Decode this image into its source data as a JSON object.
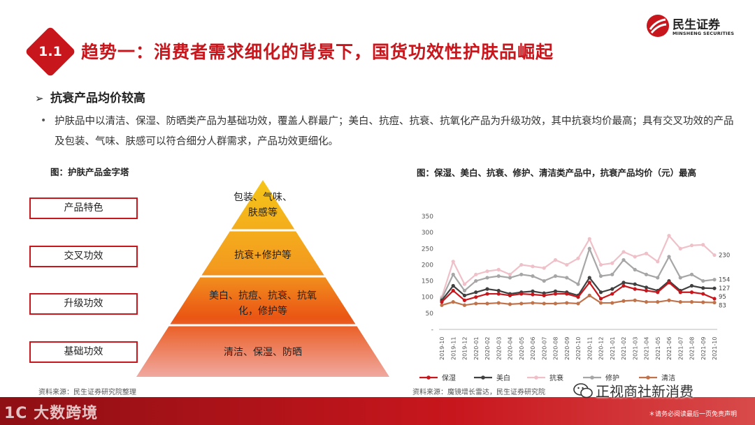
{
  "header": {
    "section_number": "1.1",
    "title": "趋势一：消费者需求细化的背景下，国货功效性护肤品崛起",
    "logo_cn": "民生证券",
    "logo_en": "MINSHENG SECURITIES",
    "brand_color": "#c8161d"
  },
  "section": {
    "heading": "抗衰产品均价较高",
    "bullet": "护肤品中以清洁、保湿、防晒类产品为基础功效，覆盖人群最广；美白、抗痘、抗衰、抗氧化产品为升级功效，其中抗衰均价最高；具有交叉功效的产品及包装、气味、肤感可以符合细分人群需求，产品功效更细化。"
  },
  "left_figure": {
    "title": "图：护肤产品金字塔",
    "labels": [
      "产品特色",
      "交叉功效",
      "升级功效",
      "基础功效"
    ],
    "pyramid": {
      "tier1": "包装、气味、肤感等",
      "tier2": "抗衰+修护等",
      "tier3": "美白、抗痘、抗衰、抗氧化，修护等",
      "tier4": "清洁、保湿、防晒"
    },
    "source": "资料来源：民生证券研究院整理"
  },
  "right_figure": {
    "title": "图：保湿、美白、抗衰、修护、清洁类产品中，抗衰产品均价（元）最高",
    "source": "资料来源：魔镜增长雷达，民生证券研究院"
  },
  "chart_data": {
    "type": "line",
    "x": [
      "2019-10",
      "2019-11",
      "2019-12",
      "2020-01",
      "2020-02",
      "2020-03",
      "2020-04",
      "2020-05",
      "2020-06",
      "2020-07",
      "2020-08",
      "2020-09",
      "2020-10",
      "2020-11",
      "2020-12",
      "2021-01",
      "2021-02",
      "2021-03",
      "2021-04",
      "2021-05",
      "2021-06",
      "2021-07",
      "2021-08",
      "2021-09",
      "2021-10"
    ],
    "ylim": [
      0,
      350
    ],
    "yticks": [
      "-",
      "50",
      "100",
      "150",
      "200",
      "250",
      "300",
      "350"
    ],
    "series": [
      {
        "name": "保湿",
        "color": "#c8161d",
        "values": [
          85,
          120,
          90,
          100,
          110,
          110,
          105,
          110,
          108,
          105,
          110,
          110,
          100,
          145,
          95,
          110,
          135,
          125,
          120,
          115,
          145,
          115,
          115,
          110,
          95
        ]
      },
      {
        "name": "美白",
        "color": "#404040",
        "values": [
          90,
          135,
          105,
          115,
          125,
          120,
          110,
          115,
          118,
          112,
          118,
          115,
          105,
          160,
          115,
          125,
          145,
          140,
          130,
          120,
          150,
          120,
          135,
          128,
          127
        ]
      },
      {
        "name": "抗衰",
        "color": "#f0c0c8",
        "values": [
          100,
          210,
          140,
          170,
          180,
          185,
          170,
          200,
          195,
          190,
          215,
          200,
          220,
          280,
          200,
          205,
          240,
          225,
          235,
          210,
          290,
          250,
          260,
          262,
          230
        ]
      },
      {
        "name": "修护",
        "color": "#a6a6a6",
        "values": [
          95,
          170,
          120,
          150,
          160,
          165,
          160,
          170,
          165,
          150,
          165,
          160,
          140,
          250,
          165,
          170,
          215,
          185,
          170,
          160,
          225,
          160,
          170,
          150,
          154
        ]
      },
      {
        "name": "清洁",
        "color": "#c0734a",
        "values": [
          75,
          85,
          75,
          80,
          80,
          82,
          78,
          80,
          82,
          80,
          80,
          82,
          80,
          105,
          82,
          82,
          88,
          90,
          85,
          85,
          90,
          85,
          85,
          84,
          83
        ]
      }
    ],
    "end_labels": [
      "230",
      "154",
      "127",
      "95",
      "83"
    ],
    "legend_position": "bottom"
  },
  "watermarks": {
    "left": "1C 大数跨境",
    "right": "正视商社新消费"
  },
  "disclaimer": "＊请务必阅读最后一页免责声明"
}
